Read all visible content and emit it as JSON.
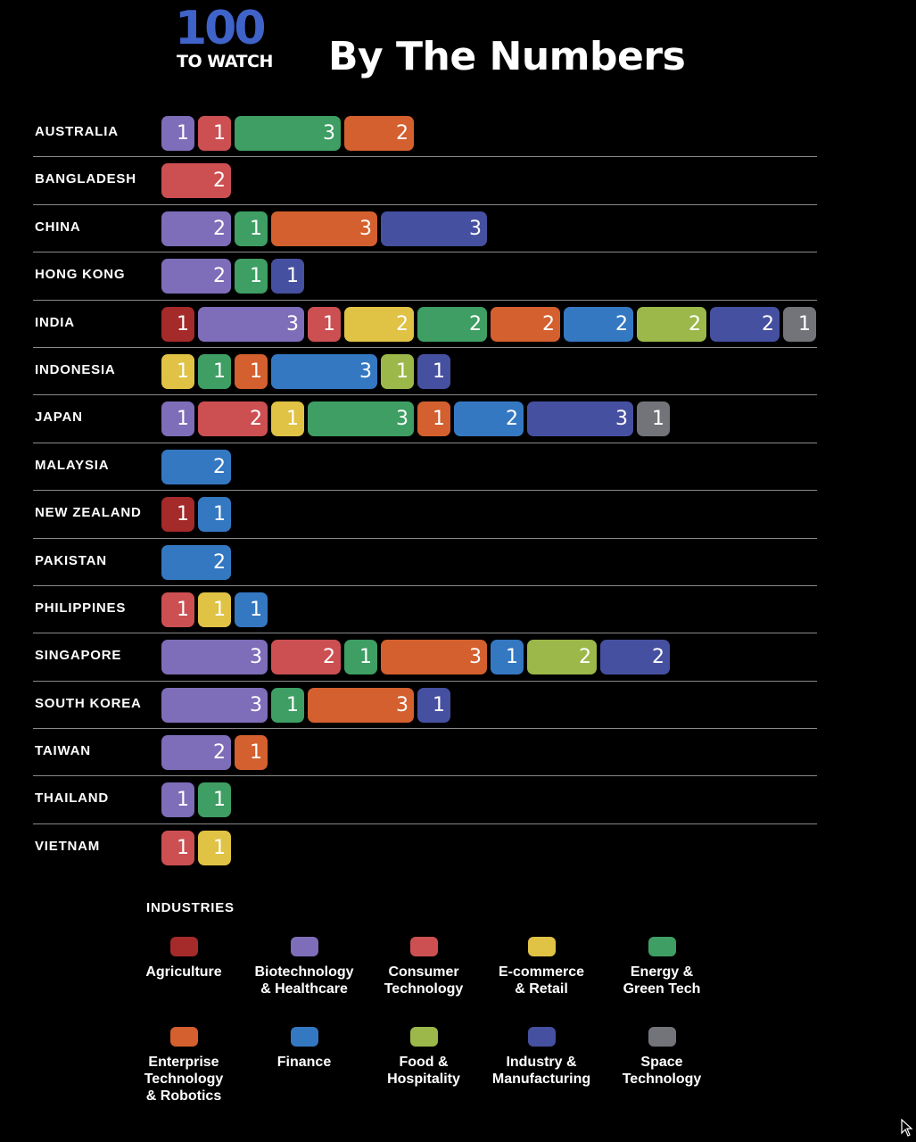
{
  "header": {
    "logo_number": "100",
    "logo_subtitle": "TO WATCH",
    "title": "By The Numbers"
  },
  "chart_data": {
    "type": "bar",
    "orientation": "horizontal",
    "stacked": true,
    "unit_note": "each segment's number = count of companies in that industry",
    "industries": [
      {
        "name": "Agriculture",
        "label": "Agriculture",
        "color": "#a52a2a"
      },
      {
        "name": "Biotechnology & Healthcare",
        "label": "Biotechnology\n& Healthcare",
        "color": "#7e6db8"
      },
      {
        "name": "Consumer Technology",
        "label": "Consumer\nTechnology",
        "color": "#cc5052"
      },
      {
        "name": "E-commerce & Retail",
        "label": "E-commerce\n& Retail",
        "color": "#e0c244"
      },
      {
        "name": "Energy & Green Tech",
        "label": "Energy &\nGreen Tech",
        "color": "#3e9e63"
      },
      {
        "name": "Enterprise Technology & Robotics",
        "label": "Enterprise\nTechnology\n& Robotics",
        "color": "#d3602e"
      },
      {
        "name": "Finance",
        "label": "Finance",
        "color": "#3578c2"
      },
      {
        "name": "Food & Hospitality",
        "label": "Food &\nHospitality",
        "color": "#9cb84a"
      },
      {
        "name": "Industry & Manufacturing",
        "label": "Industry &\nManufacturing",
        "color": "#4650a0"
      },
      {
        "name": "Space Technology",
        "label": "Space\nTechnology",
        "color": "#727479"
      }
    ],
    "countries": [
      {
        "name": "AUSTRALIA",
        "segments": [
          [
            "Biotechnology & Healthcare",
            1
          ],
          [
            "Consumer Technology",
            1
          ],
          [
            "Energy & Green Tech",
            3
          ],
          [
            "Enterprise Technology & Robotics",
            2
          ]
        ]
      },
      {
        "name": "BANGLADESH",
        "segments": [
          [
            "Consumer Technology",
            2
          ]
        ]
      },
      {
        "name": "CHINA",
        "segments": [
          [
            "Biotechnology & Healthcare",
            2
          ],
          [
            "Energy & Green Tech",
            1
          ],
          [
            "Enterprise Technology & Robotics",
            3
          ],
          [
            "Industry & Manufacturing",
            3
          ]
        ]
      },
      {
        "name": "HONG KONG",
        "segments": [
          [
            "Biotechnology & Healthcare",
            2
          ],
          [
            "Energy & Green Tech",
            1
          ],
          [
            "Industry & Manufacturing",
            1
          ]
        ]
      },
      {
        "name": "INDIA",
        "segments": [
          [
            "Agriculture",
            1
          ],
          [
            "Biotechnology & Healthcare",
            3
          ],
          [
            "Consumer Technology",
            1
          ],
          [
            "E-commerce & Retail",
            2
          ],
          [
            "Energy & Green Tech",
            2
          ],
          [
            "Enterprise Technology & Robotics",
            2
          ],
          [
            "Finance",
            2
          ],
          [
            "Food & Hospitality",
            2
          ],
          [
            "Industry & Manufacturing",
            2
          ],
          [
            "Space Technology",
            1
          ]
        ]
      },
      {
        "name": "INDONESIA",
        "segments": [
          [
            "E-commerce & Retail",
            1
          ],
          [
            "Energy & Green Tech",
            1
          ],
          [
            "Enterprise Technology & Robotics",
            1
          ],
          [
            "Finance",
            3
          ],
          [
            "Food & Hospitality",
            1
          ],
          [
            "Industry & Manufacturing",
            1
          ]
        ]
      },
      {
        "name": "JAPAN",
        "segments": [
          [
            "Biotechnology & Healthcare",
            1
          ],
          [
            "Consumer Technology",
            2
          ],
          [
            "E-commerce & Retail",
            1
          ],
          [
            "Energy & Green Tech",
            3
          ],
          [
            "Enterprise Technology & Robotics",
            1
          ],
          [
            "Finance",
            2
          ],
          [
            "Industry & Manufacturing",
            3
          ],
          [
            "Space Technology",
            1
          ]
        ]
      },
      {
        "name": "MALAYSIA",
        "segments": [
          [
            "Finance",
            2
          ]
        ]
      },
      {
        "name": "NEW ZEALAND",
        "segments": [
          [
            "Agriculture",
            1
          ],
          [
            "Finance",
            1
          ]
        ]
      },
      {
        "name": "PAKISTAN",
        "segments": [
          [
            "Finance",
            2
          ]
        ]
      },
      {
        "name": "PHILIPPINES",
        "segments": [
          [
            "Consumer Technology",
            1
          ],
          [
            "E-commerce & Retail",
            1
          ],
          [
            "Finance",
            1
          ]
        ]
      },
      {
        "name": "SINGAPORE",
        "segments": [
          [
            "Biotechnology & Healthcare",
            3
          ],
          [
            "Consumer Technology",
            2
          ],
          [
            "Energy & Green Tech",
            1
          ],
          [
            "Enterprise Technology & Robotics",
            3
          ],
          [
            "Finance",
            1
          ],
          [
            "Food & Hospitality",
            2
          ],
          [
            "Industry & Manufacturing",
            2
          ]
        ]
      },
      {
        "name": "SOUTH KOREA",
        "segments": [
          [
            "Biotechnology & Healthcare",
            3
          ],
          [
            "Energy & Green Tech",
            1
          ],
          [
            "Enterprise Technology & Robotics",
            3
          ],
          [
            "Industry & Manufacturing",
            1
          ]
        ]
      },
      {
        "name": "TAIWAN",
        "segments": [
          [
            "Biotechnology & Healthcare",
            2
          ],
          [
            "Enterprise Technology & Robotics",
            1
          ]
        ]
      },
      {
        "name": "THAILAND",
        "segments": [
          [
            "Biotechnology & Healthcare",
            1
          ],
          [
            "Energy & Green Tech",
            1
          ]
        ]
      },
      {
        "name": "VIETNAM",
        "segments": [
          [
            "Consumer Technology",
            1
          ],
          [
            "E-commerce & Retail",
            1
          ]
        ]
      }
    ],
    "legend": {
      "title": "INDUSTRIES",
      "placement": "bottom"
    }
  }
}
